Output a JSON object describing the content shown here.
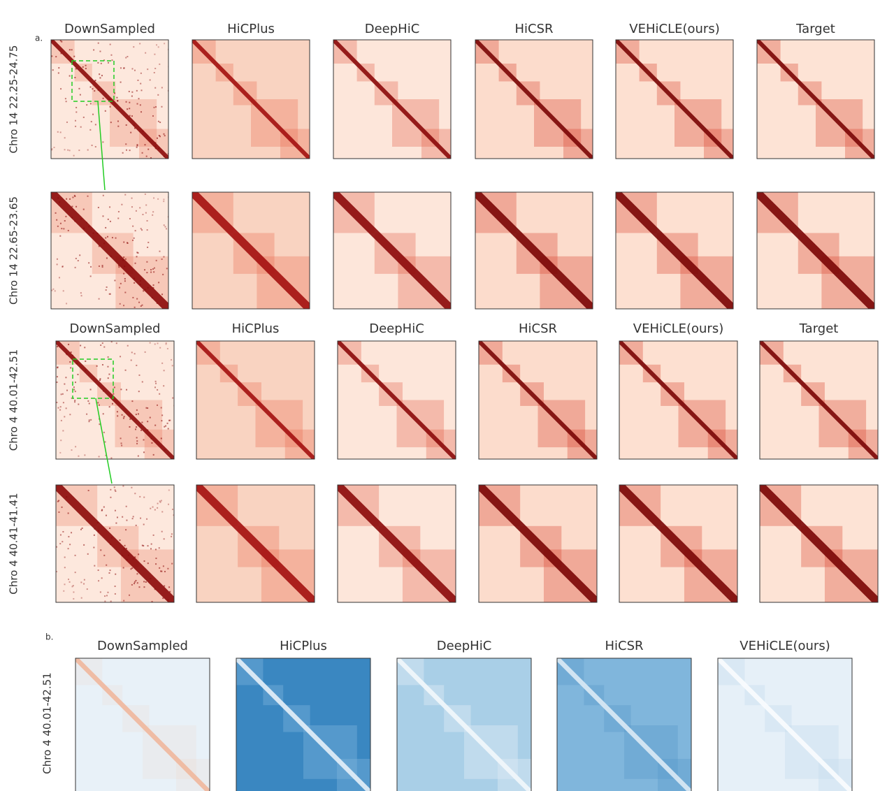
{
  "panel_a": {
    "label": "a.",
    "groups": [
      {
        "columns": [
          "DownSampled",
          "HiCPlus",
          "DeepHiC",
          "HiCSR",
          "VEHiCLE(ours)",
          "Target"
        ],
        "rows": [
          "Chro 14  22.25-24.75",
          "Chro 14  22.65-23.65"
        ]
      },
      {
        "columns": [
          "DownSampled",
          "HiCPlus",
          "DeepHiC",
          "HiCSR",
          "VEHiCLE(ours)",
          "Target"
        ],
        "rows": [
          "Chro 4  40.01-42.51",
          "Chro 4  40.41-41.41"
        ]
      }
    ]
  },
  "panel_b": {
    "label": "b.",
    "columns": [
      "DownSampled",
      "HiCPlus",
      "DeepHiC",
      "HiCSR",
      "VEHiCLE(ours)"
    ],
    "rows": [
      "Chro 4  40.01-42.51"
    ]
  }
}
